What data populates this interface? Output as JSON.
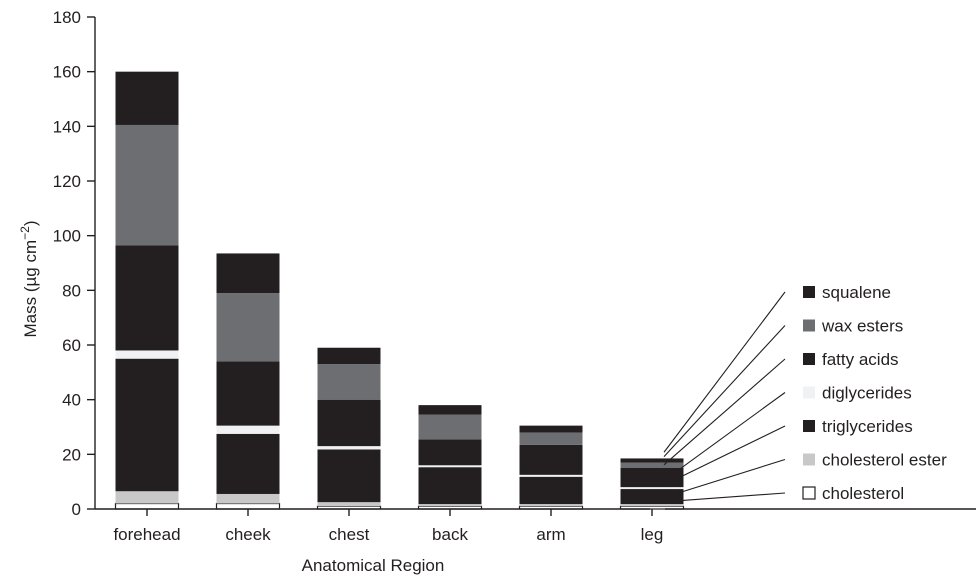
{
  "chart_data": {
    "type": "bar",
    "stacked": true,
    "xlabel": "Anatomical Region",
    "ylabel": "Mass (µg cm",
    "ylabel_sup": "−2",
    "ylabel_close": ")",
    "ylim": [
      0,
      180
    ],
    "yticks": [
      "0",
      "20",
      "40",
      "60",
      "80",
      "100",
      "120",
      "140",
      "160",
      "180"
    ],
    "categories": [
      "forehead",
      "cheek",
      "chest",
      "back",
      "arm",
      "leg"
    ],
    "series": [
      {
        "name": "cholesterol",
        "color": "#ffffff",
        "values": [
          2,
          2,
          1,
          1,
          1,
          1
        ]
      },
      {
        "name": "cholesterol ester",
        "color": "#c8c8c8",
        "values": [
          4.5,
          3.5,
          1.5,
          0.8,
          0.8,
          0.8
        ]
      },
      {
        "name": "triglycerides",
        "color": "#231f20",
        "values": [
          48.5,
          22,
          19.3,
          13.5,
          10,
          5.5
        ]
      },
      {
        "name": "diglycerides",
        "color": "#f0f1f3",
        "values": [
          3,
          3,
          1.2,
          0.7,
          0.7,
          0.7
        ]
      },
      {
        "name": "fatty acids",
        "color": "#231f20",
        "values": [
          38.5,
          23.5,
          17,
          9.5,
          11,
          7
        ]
      },
      {
        "name": "wax esters",
        "color": "#6d6e71",
        "values": [
          44,
          25,
          13,
          9,
          4.5,
          2
        ]
      },
      {
        "name": "squalene",
        "color": "#231f20",
        "values": [
          19.5,
          14.5,
          6,
          3.5,
          2.5,
          1.5
        ]
      }
    ],
    "legend_order": [
      "squalene",
      "wax esters",
      "fatty acids",
      "diglycerides",
      "triglycerides",
      "cholesterol ester",
      "cholesterol"
    ],
    "legend_position": "right",
    "grid": false
  }
}
